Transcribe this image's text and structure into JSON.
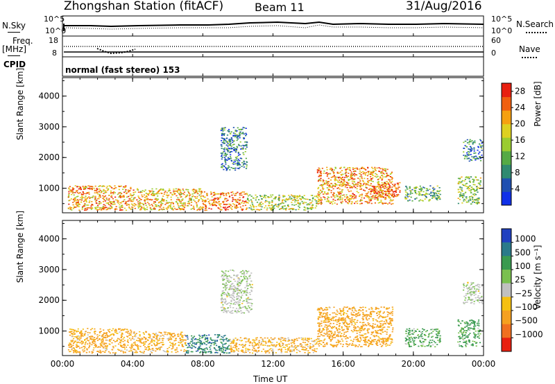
{
  "header": {
    "station": "Zhongshan Station (fitACF)",
    "beam": "Beam 11",
    "date": "31/Aug/2016"
  },
  "sky_panel": {
    "left_label": "N.Sky",
    "right_label": "N.Search",
    "ticks_left": [
      "10^5",
      "10^0"
    ],
    "ticks_right": [
      "10^5",
      "10^0"
    ]
  },
  "freq_panel": {
    "left_label_1": "Freq.",
    "left_label_2": "[MHz]",
    "right_label": "Nave",
    "ticks_left": [
      "18",
      "8"
    ],
    "ticks_right": [
      "60",
      "0"
    ]
  },
  "cpid": {
    "label": "CPID",
    "text": "normal (fast stereo) 153"
  },
  "chart_data": [
    {
      "type": "heatmap",
      "name": "power",
      "ylabel": "Slant Range [km]",
      "ylim": [
        200,
        4600
      ],
      "yticks": [
        "1000",
        "2000",
        "3000",
        "4000"
      ],
      "colorbar_label": "Power [dB]",
      "colorbar_ticks": [
        "4",
        "8",
        "12",
        "16",
        "20",
        "24",
        "28"
      ],
      "colorbar_range": [
        0,
        30
      ],
      "colors": [
        "#1030e8",
        "#2050b0",
        "#308a70",
        "#55aa45",
        "#9acc30",
        "#ddd020",
        "#f5a010",
        "#f06010",
        "#e82010"
      ],
      "regions": [
        {
          "t": [
            0.3,
            4.0
          ],
          "r": [
            300,
            1100
          ],
          "value": 22
        },
        {
          "t": [
            4.0,
            8.0
          ],
          "r": [
            300,
            1000
          ],
          "value": 20
        },
        {
          "t": [
            8.0,
            10.5
          ],
          "r": [
            300,
            900
          ],
          "value": 24
        },
        {
          "t": [
            10.5,
            14.5
          ],
          "r": [
            300,
            800
          ],
          "value": 16
        },
        {
          "t": [
            14.5,
            18.8
          ],
          "r": [
            500,
            1700
          ],
          "value": 22
        },
        {
          "t": [
            17.5,
            19.2
          ],
          "r": [
            700,
            1200
          ],
          "value": 26
        },
        {
          "t": [
            9.0,
            10.5
          ],
          "r": [
            1600,
            3000
          ],
          "value": 8
        },
        {
          "t": [
            19.5,
            21.5
          ],
          "r": [
            600,
            1100
          ],
          "value": 12
        },
        {
          "t": [
            22.5,
            23.8
          ],
          "r": [
            500,
            1400
          ],
          "value": 14
        },
        {
          "t": [
            22.8,
            23.9
          ],
          "r": [
            1900,
            2600
          ],
          "value": 8
        }
      ]
    },
    {
      "type": "heatmap",
      "name": "velocity",
      "ylabel": "Slant Range [km]",
      "ylim": [
        200,
        4600
      ],
      "yticks": [
        "1000",
        "2000",
        "3000",
        "4000"
      ],
      "colorbar_label": "Velocity [m s⁻¹]",
      "colorbar_ticks": [
        "1000",
        "500",
        "100",
        "25",
        "−25",
        "−100",
        "−500",
        "−1000"
      ],
      "colors": [
        "#2040c0",
        "#2a7a8a",
        "#3a9a50",
        "#7ac050",
        "#c0c0c0",
        "#f5c010",
        "#f5a020",
        "#f07020",
        "#e82010"
      ],
      "regions": [
        {
          "t": [
            0.3,
            4.0
          ],
          "r": [
            300,
            1100
          ],
          "value": -200
        },
        {
          "t": [
            4.0,
            7.0
          ],
          "r": [
            300,
            1000
          ],
          "value": -150
        },
        {
          "t": [
            7.0,
            9.5
          ],
          "r": [
            300,
            900
          ],
          "value": 600
        },
        {
          "t": [
            9.5,
            14.5
          ],
          "r": [
            300,
            800
          ],
          "value": -120
        },
        {
          "t": [
            14.5,
            18.8
          ],
          "r": [
            500,
            1800
          ],
          "value": -250
        },
        {
          "t": [
            9.0,
            10.8
          ],
          "r": [
            1600,
            3000
          ],
          "value": 10
        },
        {
          "t": [
            19.5,
            21.5
          ],
          "r": [
            500,
            1100
          ],
          "value": 150
        },
        {
          "t": [
            22.5,
            23.8
          ],
          "r": [
            500,
            1400
          ],
          "value": 200
        },
        {
          "t": [
            22.8,
            23.9
          ],
          "r": [
            1900,
            2600
          ],
          "value": 10
        }
      ]
    }
  ],
  "xaxis": {
    "label": "Time UT",
    "xlim": [
      0,
      24
    ],
    "ticks": [
      "00:00",
      "04:00",
      "08:00",
      "12:00",
      "16:00",
      "20:00",
      "00:00"
    ]
  }
}
